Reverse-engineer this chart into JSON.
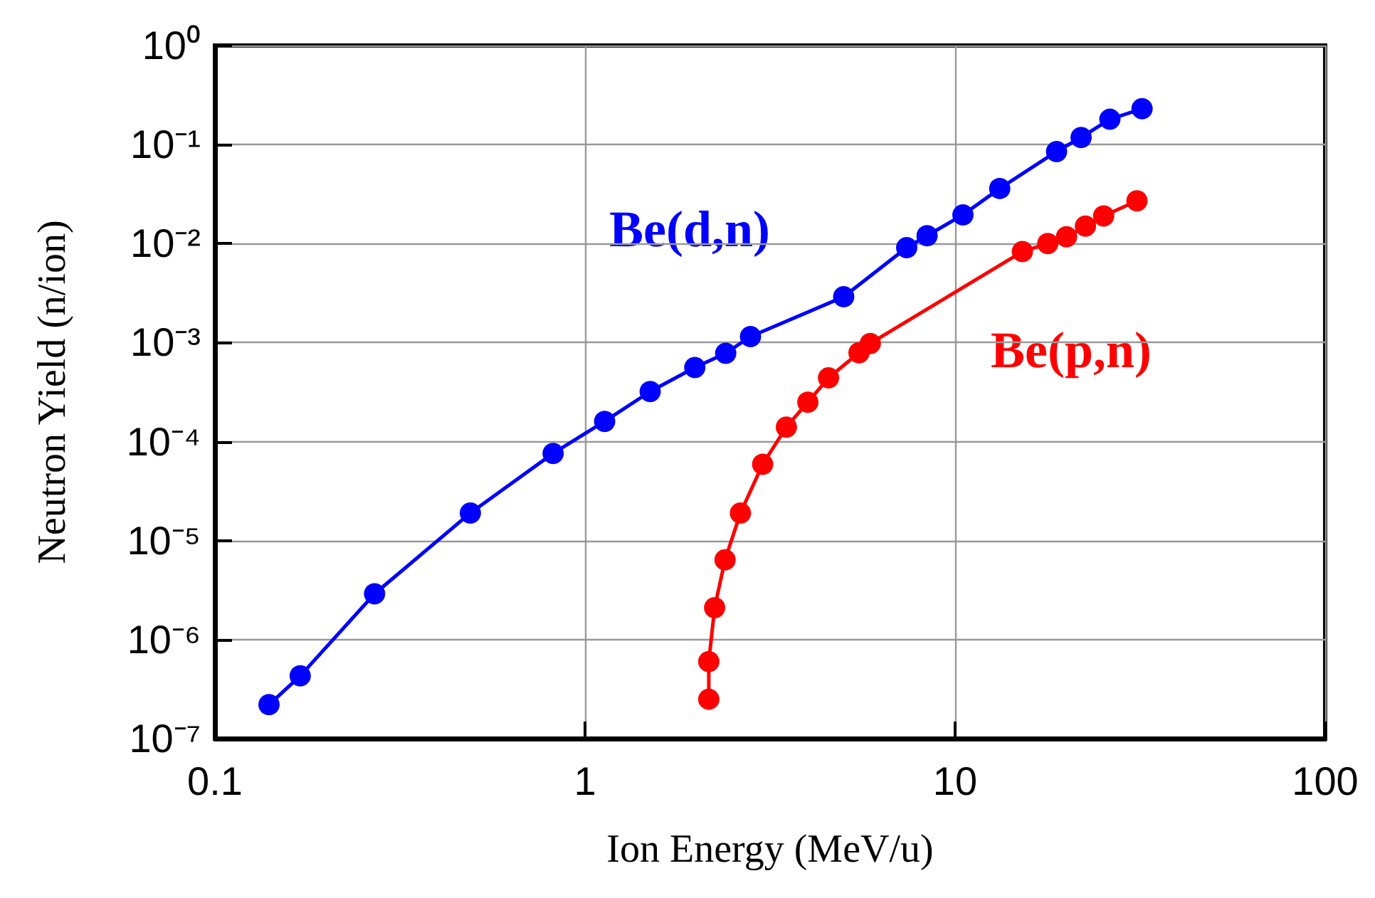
{
  "chart_data": {
    "type": "line",
    "xlabel": "Ion Energy (MeV/u)",
    "ylabel": "Neutron Yield (n/ion)",
    "log": "xy",
    "grid": true,
    "legend": false,
    "marker": "circle",
    "line_style": "solid",
    "xlim": [
      0.1,
      100
    ],
    "xticks": [
      0.1,
      1,
      10,
      100
    ],
    "ylim": [
      1e-07,
      1
    ],
    "yticks": [
      {
        "value": 1e-07,
        "label": "10⁻⁷"
      },
      {
        "value": 1e-06,
        "label": "10⁻⁶"
      },
      {
        "value": 1e-05,
        "label": "10⁻⁵"
      },
      {
        "value": 0.0001,
        "label": "10⁻⁴"
      },
      {
        "value": 0.001,
        "label": "10⁻³"
      },
      {
        "value": 0.01,
        "label": "10⁻²"
      },
      {
        "value": 0.1,
        "label": "10⁻¹"
      },
      {
        "value": 1,
        "label": "10⁰"
      }
    ],
    "series": [
      {
        "name": "Be(d,n)",
        "color": "#0000ff",
        "x": [
          0.14,
          0.17,
          0.27,
          0.49,
          0.82,
          1.13,
          1.5,
          1.98,
          2.4,
          2.8,
          5.0,
          7.4,
          8.4,
          10.5,
          13.2,
          18.8,
          21.9,
          26.2,
          32
        ],
        "values": [
          2.2e-07,
          4.3e-07,
          2.9e-06,
          1.9e-05,
          7.6e-05,
          0.00016,
          0.00032,
          0.00056,
          0.00078,
          0.00115,
          0.0029,
          0.0091,
          0.012,
          0.0195,
          0.036,
          0.085,
          0.118,
          0.18,
          0.23
        ]
      },
      {
        "name": "Be(p,n)",
        "color": "#ff0000",
        "x": [
          2.16,
          2.16,
          2.24,
          2.39,
          2.63,
          3.02,
          3.5,
          4.0,
          4.55,
          5.5,
          5.9,
          15.2,
          17.8,
          20,
          22.5,
          25.2,
          31
        ],
        "values": [
          2.5e-07,
          6e-07,
          2.1e-06,
          6.4e-06,
          1.9e-05,
          5.9e-05,
          0.00014,
          0.00025,
          0.00044,
          0.00079,
          0.00098,
          0.0083,
          0.01,
          0.0117,
          0.015,
          0.019,
          0.027
        ]
      }
    ]
  }
}
